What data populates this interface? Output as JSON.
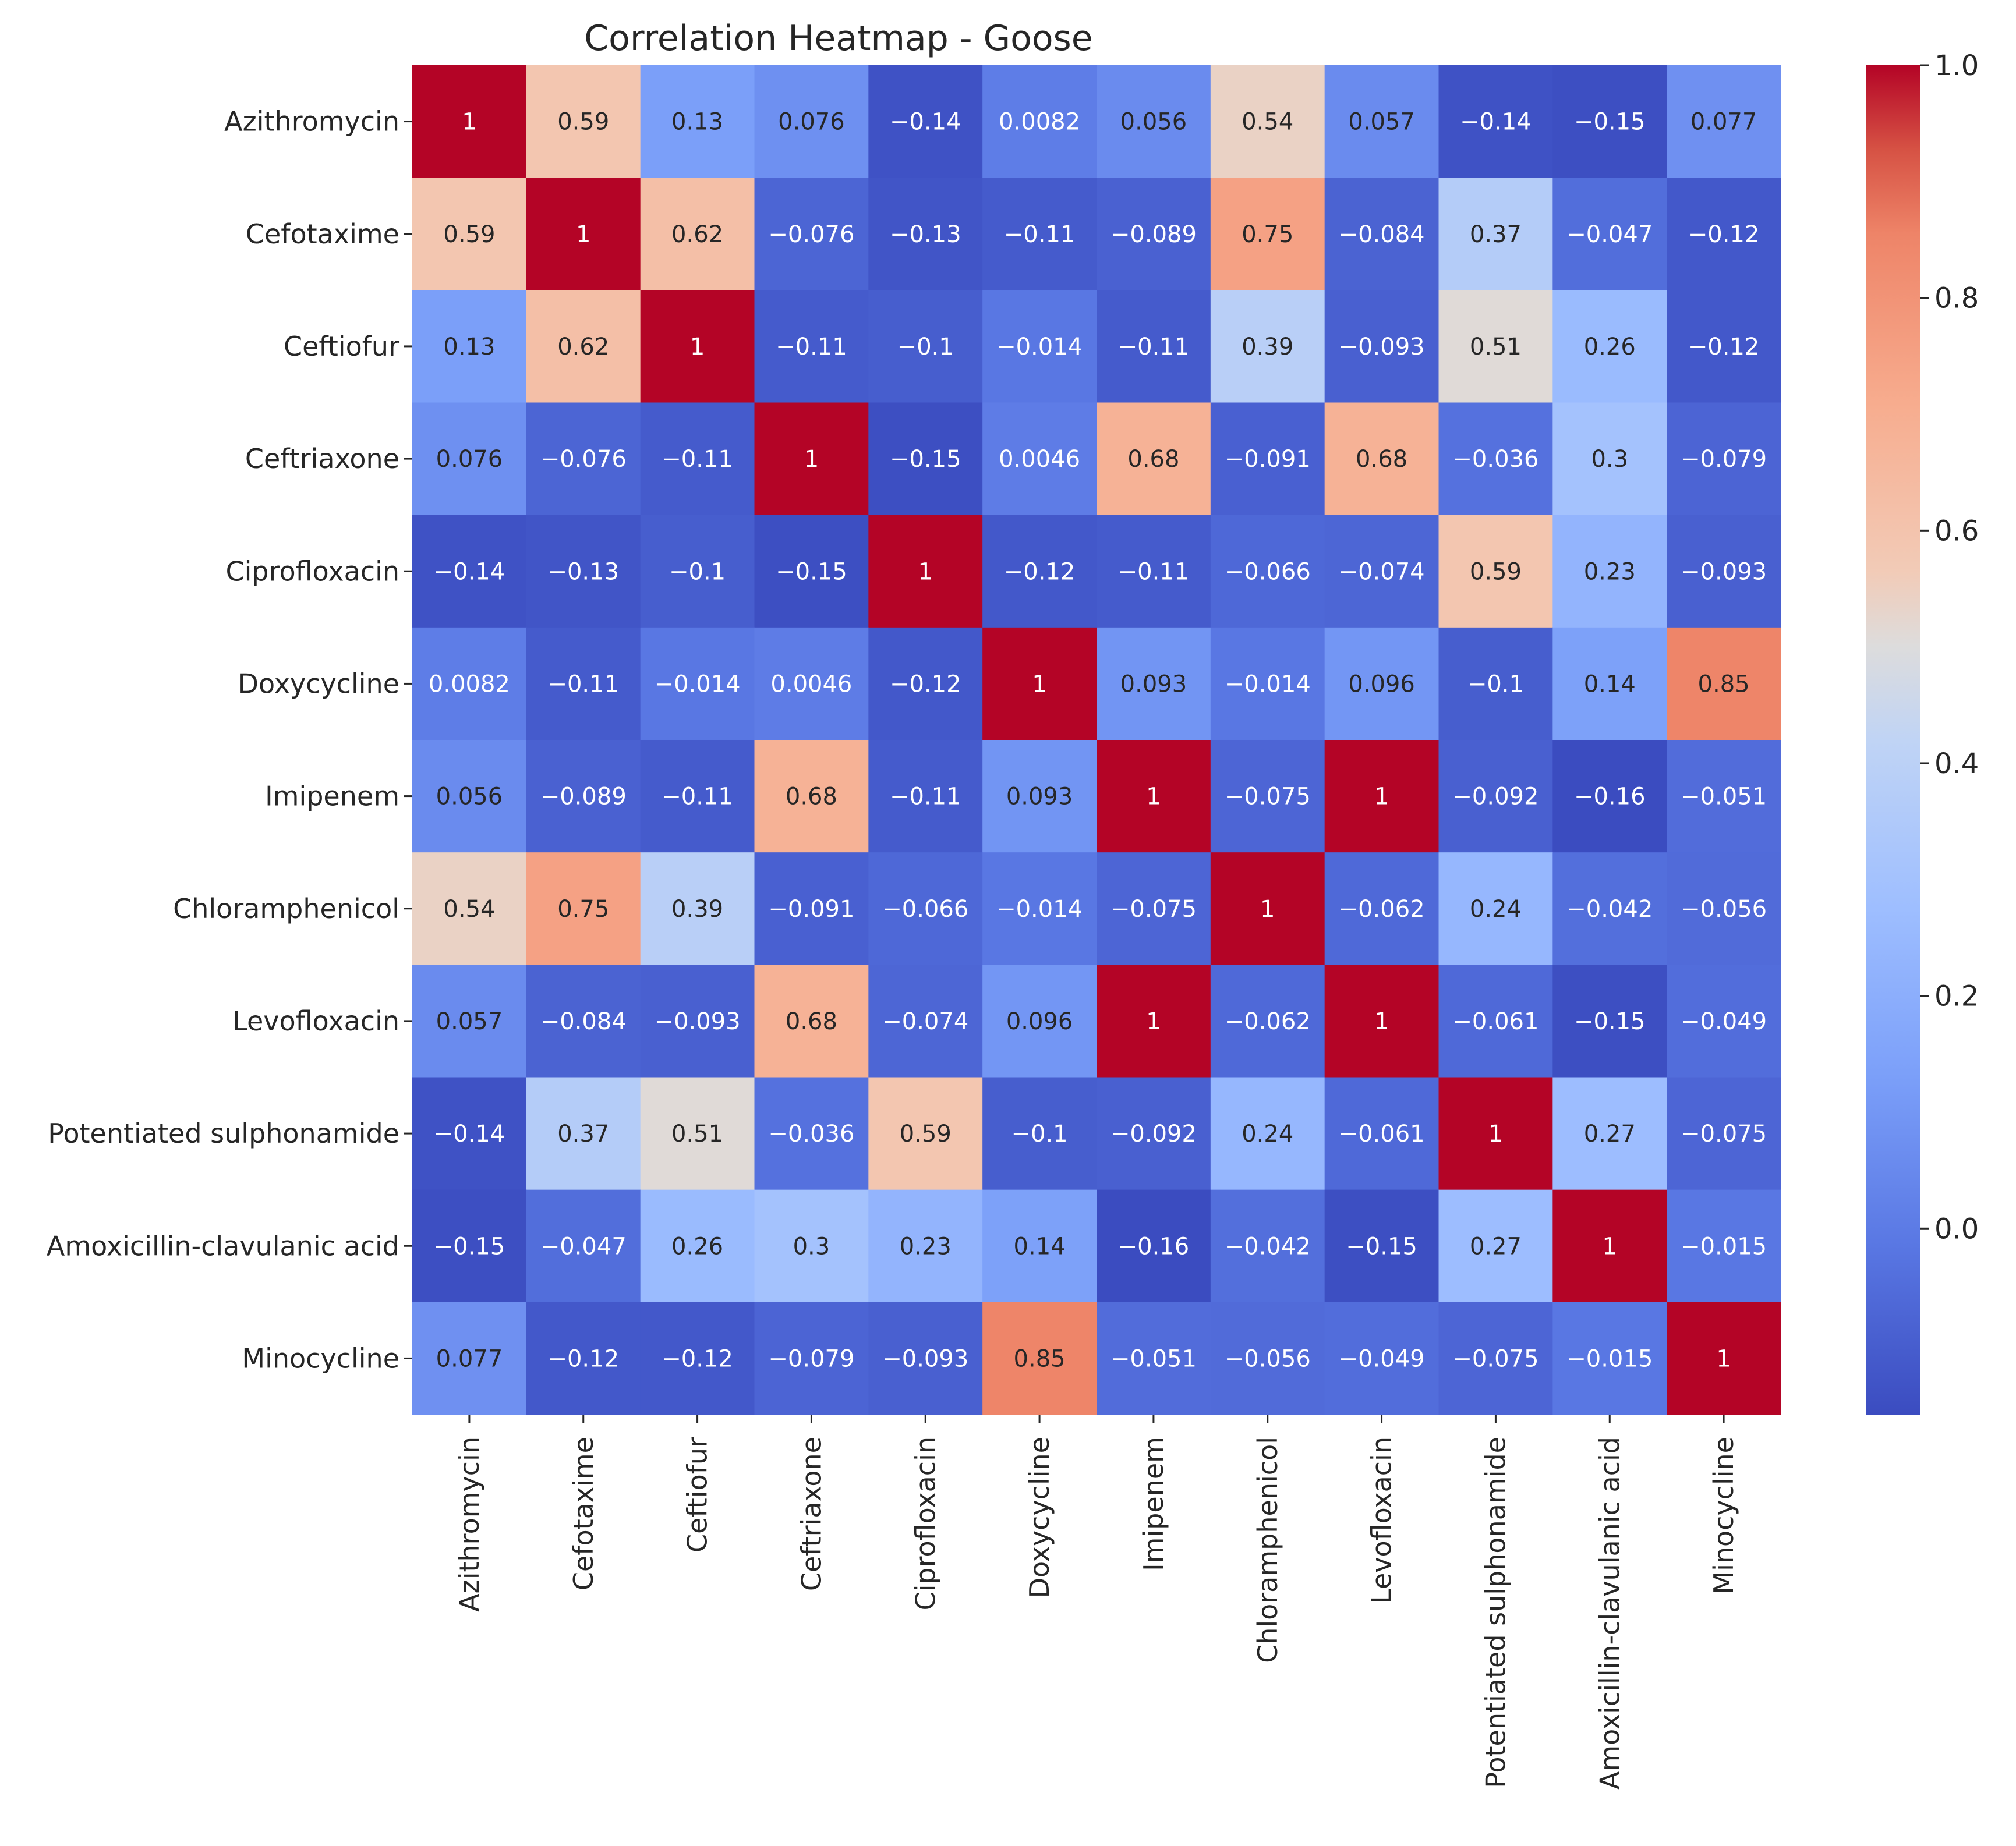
{
  "chart_data": {
    "type": "heatmap",
    "title": "Correlation Heatmap - Goose",
    "xlabel": "",
    "ylabel": "",
    "labels": [
      "Azithromycin",
      "Cefotaxime",
      "Ceftiofur",
      "Ceftriaxone",
      "Ciprofloxacin",
      "Doxycycline",
      "Imipenem",
      "Chloramphenicol",
      "Levofloxacin",
      "Potentiated sulphonamide",
      "Amoxicillin-clavulanic acid",
      "Minocycline"
    ],
    "values": [
      [
        1,
        0.59,
        0.13,
        0.076,
        -0.14,
        0.0082,
        0.056,
        0.54,
        0.057,
        -0.14,
        -0.15,
        0.077
      ],
      [
        0.59,
        1,
        0.62,
        -0.076,
        -0.13,
        -0.11,
        -0.089,
        0.75,
        -0.084,
        0.37,
        -0.047,
        -0.12
      ],
      [
        0.13,
        0.62,
        1,
        -0.11,
        -0.1,
        -0.014,
        -0.11,
        0.39,
        -0.093,
        0.51,
        0.26,
        -0.12
      ],
      [
        0.076,
        -0.076,
        -0.11,
        1,
        -0.15,
        0.0046,
        0.68,
        -0.091,
        0.68,
        -0.036,
        0.3,
        -0.079
      ],
      [
        -0.14,
        -0.13,
        -0.1,
        -0.15,
        1,
        -0.12,
        -0.11,
        -0.066,
        -0.074,
        0.59,
        0.23,
        -0.093
      ],
      [
        0.0082,
        -0.11,
        -0.014,
        0.0046,
        -0.12,
        1,
        0.093,
        -0.014,
        0.096,
        -0.1,
        0.14,
        0.85
      ],
      [
        0.056,
        -0.089,
        -0.11,
        0.68,
        -0.11,
        0.093,
        1,
        -0.075,
        1,
        -0.092,
        -0.16,
        -0.051
      ],
      [
        0.54,
        0.75,
        0.39,
        -0.091,
        -0.066,
        -0.014,
        -0.075,
        1,
        -0.062,
        0.24,
        -0.042,
        -0.056
      ],
      [
        0.057,
        -0.084,
        -0.093,
        0.68,
        -0.074,
        0.096,
        1,
        -0.062,
        1,
        -0.061,
        -0.15,
        -0.049
      ],
      [
        -0.14,
        0.37,
        0.51,
        -0.036,
        0.59,
        -0.1,
        -0.092,
        0.24,
        -0.061,
        1,
        0.27,
        -0.075
      ],
      [
        -0.15,
        -0.047,
        0.26,
        0.3,
        0.23,
        0.14,
        -0.16,
        -0.042,
        -0.15,
        0.27,
        1,
        -0.015
      ],
      [
        0.077,
        -0.12,
        -0.12,
        -0.079,
        -0.093,
        0.85,
        -0.051,
        -0.056,
        -0.049,
        -0.075,
        -0.015,
        1
      ]
    ],
    "colormap": "coolwarm",
    "vmin": -0.16,
    "vmax": 1.0,
    "colorbar_ticks": [
      0.0,
      0.2,
      0.4,
      0.6,
      0.8,
      1.0
    ],
    "colorbar_tick_labels": [
      "0.0",
      "0.2",
      "0.4",
      "0.6",
      "0.8",
      "1.0"
    ],
    "annotated": true,
    "grid": false,
    "colorbar_position": "right"
  }
}
